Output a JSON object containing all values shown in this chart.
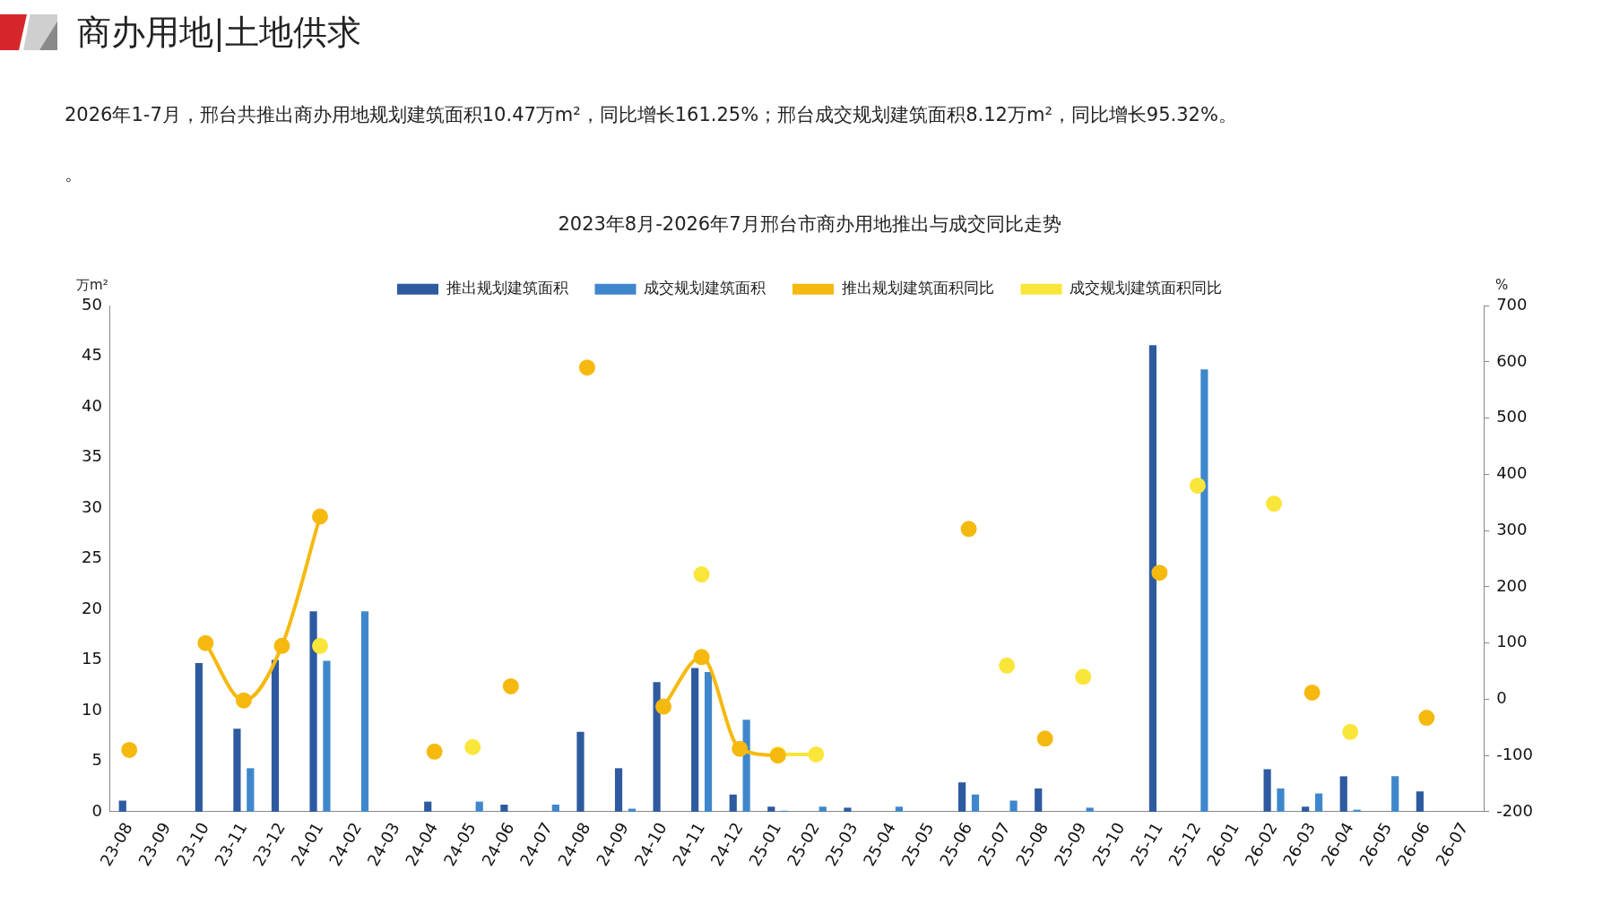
{
  "chart_data": {
    "type": "bar",
    "title": "2023年8月-2026年7月邢台市商办用地推出与成交同比走势",
    "annotations": [
      "商办用地|土地供求",
      "2026年1-7月，邢台共推出商办用地规划建筑面积10.47万m²，同比增长161.25%；邢台成交规划建筑面积8.12万m²，同比增长95.32%。",
      "。"
    ],
    "ylabel": "万m²",
    "y2label": "%",
    "categories": [
      "23-08",
      "23-09",
      "23-10",
      "23-11",
      "23-12",
      "24-01",
      "24-02",
      "24-03",
      "24-04",
      "24-05",
      "24-06",
      "24-07",
      "24-08",
      "24-09",
      "24-10",
      "24-11",
      "24-12",
      "25-01",
      "25-02",
      "25-03",
      "25-04",
      "25-05",
      "25-06",
      "25-07",
      "25-08",
      "25-09",
      "25-10",
      "25-11",
      "25-12",
      "26-01",
      "26-02",
      "26-03",
      "26-04",
      "26-05",
      "26-06",
      "26-07"
    ],
    "series": [
      {
        "name": "推出规划建筑面积",
        "color": "#2e5aa0",
        "values": [
          1.1,
          null,
          14.7,
          8.2,
          15,
          19.8,
          null,
          null,
          1.0,
          null,
          0.7,
          null,
          7.9,
          4.3,
          12.8,
          14.2,
          1.7,
          0.5,
          null,
          0.4,
          null,
          null,
          2.9,
          null,
          2.3,
          null,
          null,
          46.1,
          null,
          null,
          4.2,
          0.5,
          3.5,
          null,
          2.0,
          null
        ]
      },
      {
        "name": "成交规划建筑面积",
        "color": "#3f87cc",
        "values": [
          null,
          null,
          null,
          4.3,
          null,
          14.9,
          19.8,
          null,
          null,
          1.0,
          null,
          0.7,
          null,
          0.3,
          null,
          13.8,
          9.1,
          0.1,
          0.5,
          null,
          0.5,
          null,
          1.7,
          1.1,
          null,
          0.4,
          null,
          null,
          43.7,
          null,
          2.3,
          1.8,
          0.2,
          3.5,
          null,
          null
        ]
      },
      {
        "name": "推出规划建筑面积同比",
        "type": "line",
        "axis": "y2",
        "color": "#f5b90f",
        "values": [
          -90,
          null,
          100,
          -2,
          95,
          325,
          null,
          null,
          -93,
          null,
          23,
          null,
          590,
          null,
          -13,
          75,
          -88,
          -100,
          null,
          null,
          null,
          null,
          303,
          null,
          -70,
          null,
          null,
          225,
          null,
          null,
          null,
          12,
          null,
          null,
          -33,
          null
        ]
      },
      {
        "name": "成交规划建筑面积同比",
        "type": "line",
        "axis": "y2",
        "color": "#fae53a",
        "values": [
          null,
          null,
          null,
          null,
          null,
          95,
          null,
          null,
          null,
          -85,
          null,
          null,
          null,
          null,
          null,
          222,
          null,
          -98,
          -98,
          null,
          null,
          null,
          null,
          60,
          null,
          40,
          null,
          null,
          380,
          null,
          348,
          null,
          -58,
          null,
          null,
          null
        ]
      }
    ],
    "ylim": [
      0,
      50
    ],
    "yticks": [
      0,
      5,
      10,
      15,
      20,
      25,
      30,
      35,
      40,
      45,
      50
    ],
    "y2lim": [
      -200,
      700
    ],
    "y2ticks": [
      -200,
      -100,
      0,
      100,
      200,
      300,
      400,
      500,
      600,
      700
    ],
    "grid": false,
    "legend": "top",
    "marker": "circle",
    "line_style": "solid"
  }
}
